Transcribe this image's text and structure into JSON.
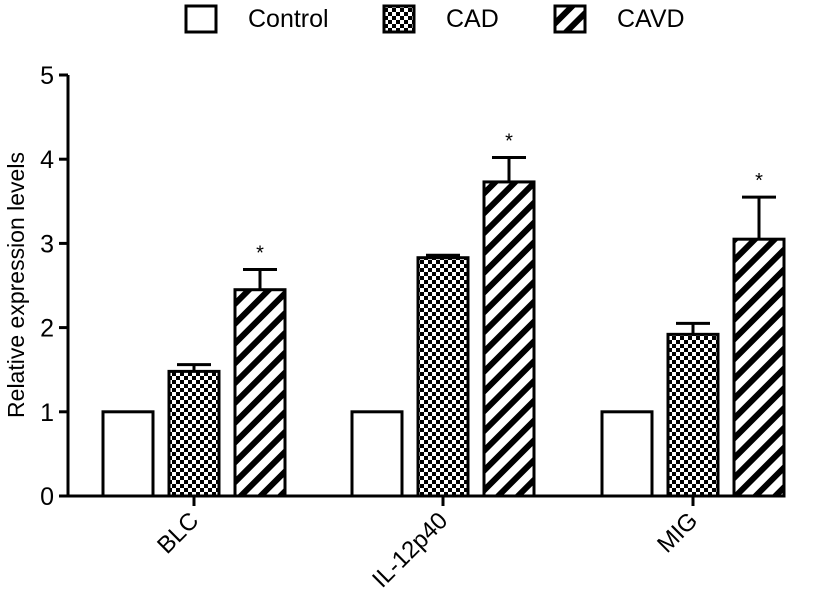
{
  "chart_data": {
    "type": "bar",
    "title": "",
    "xlabel": "",
    "ylabel": "Relative expression levels",
    "ylim": [
      0,
      5
    ],
    "yticks": [
      "0",
      "1",
      "2",
      "3",
      "4",
      "5"
    ],
    "categories": [
      "BLC",
      "IL-12p40",
      "MIG"
    ],
    "series": [
      {
        "name": "Control",
        "pattern": "open",
        "values": [
          1,
          1,
          1
        ],
        "errors": [
          0,
          0,
          0
        ],
        "sig": [
          "",
          "",
          ""
        ]
      },
      {
        "name": "CAD",
        "pattern": "checker",
        "values": [
          1.48,
          2.83,
          1.92
        ],
        "errors": [
          0.08,
          0.03,
          0.13
        ],
        "sig": [
          "",
          "",
          ""
        ]
      },
      {
        "name": "CAVD",
        "pattern": "diagonal",
        "values": [
          2.45,
          3.73,
          3.05
        ],
        "errors": [
          0.24,
          0.29,
          0.5
        ],
        "sig": [
          "*",
          "*",
          "*"
        ]
      }
    ],
    "legend_position": "top-center",
    "grid": false,
    "colors": {
      "stroke": "#000000",
      "fill": "#ffffff"
    }
  }
}
